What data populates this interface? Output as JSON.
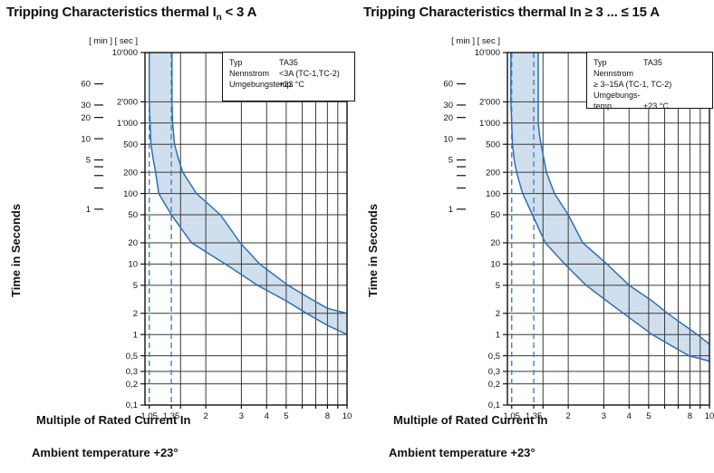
{
  "colors": {
    "band": "#d0dfee",
    "curve": "#2e6fb3",
    "dashed": "#4181c4",
    "grid": "#3a3a3a",
    "axis": "#111111",
    "text": "#111111"
  },
  "chart_data": [
    {
      "type": "area",
      "title": "Tripping Characteristics thermal In < 3 A",
      "title_parts": {
        "prefix": "Tripping Characteristics thermal I",
        "sub": "n",
        "suffix": " < 3 A"
      },
      "ylabel": "Time in Seconds",
      "xlabel": "Multiple of Rated Current In",
      "ambient_note": "Ambient temperature +23°",
      "unit_header": "[ min ] [ sec ]",
      "x_scale": "log",
      "y_scale": "log",
      "xlim": [
        1,
        10
      ],
      "ylim_seconds": [
        0.1,
        10000
      ],
      "sec_ticks": [
        [
          10000,
          "10'000"
        ],
        [
          2000,
          "2'000"
        ],
        [
          1000,
          "1'000"
        ],
        [
          500,
          "500"
        ],
        [
          200,
          "200"
        ],
        [
          100,
          "100"
        ],
        [
          50,
          "50"
        ],
        [
          20,
          "20"
        ],
        [
          10,
          "10"
        ],
        [
          5,
          "5"
        ],
        [
          2,
          "2"
        ],
        [
          1,
          "1"
        ],
        [
          0.5,
          "0,5"
        ],
        [
          0.3,
          "0,3"
        ],
        [
          0.2,
          "0,2"
        ],
        [
          0.1,
          "0,1"
        ]
      ],
      "min_ticks": [
        [
          60,
          "60"
        ],
        [
          30,
          "30"
        ],
        [
          20,
          "20"
        ],
        [
          10,
          "10"
        ],
        [
          5,
          "5"
        ],
        [
          4,
          ""
        ],
        [
          3,
          ""
        ],
        [
          2,
          ""
        ],
        [
          1,
          "1"
        ]
      ],
      "x_ticks": [
        [
          1.05,
          "1,05"
        ],
        [
          1.35,
          "1,35"
        ],
        [
          1.5,
          ""
        ],
        [
          2,
          "2"
        ],
        [
          3,
          "3"
        ],
        [
          4,
          "4"
        ],
        [
          5,
          "5"
        ],
        [
          6,
          ""
        ],
        [
          7,
          ""
        ],
        [
          8,
          "8"
        ],
        [
          9,
          ""
        ],
        [
          10,
          "10"
        ]
      ],
      "x_gridlines": [
        1.5,
        2,
        3,
        4,
        5,
        6,
        7,
        8,
        9,
        10
      ],
      "dashed_gridlines_x": [
        1.05,
        1.35
      ],
      "series": [
        {
          "name": "min-tripping-time",
          "points": [
            [
              1.05,
              10000
            ],
            [
              1.05,
              2000
            ],
            [
              1.06,
              1000
            ],
            [
              1.07,
              500
            ],
            [
              1.1,
              300
            ],
            [
              1.13,
              200
            ],
            [
              1.17,
              100
            ],
            [
              1.35,
              50
            ],
            [
              1.7,
              20
            ],
            [
              2.5,
              10
            ],
            [
              3.6,
              5
            ],
            [
              5.0,
              3
            ],
            [
              6.3,
              2
            ],
            [
              8.0,
              1.35
            ],
            [
              10,
              1.0
            ]
          ]
        },
        {
          "name": "max-tripping-time",
          "points": [
            [
              1.36,
              10000
            ],
            [
              1.36,
              2000
            ],
            [
              1.37,
              1000
            ],
            [
              1.4,
              500
            ],
            [
              1.47,
              300
            ],
            [
              1.54,
              200
            ],
            [
              1.8,
              100
            ],
            [
              2.36,
              50
            ],
            [
              2.96,
              20
            ],
            [
              3.7,
              10
            ],
            [
              5.1,
              5
            ],
            [
              6.5,
              3.3
            ],
            [
              8.0,
              2.35
            ],
            [
              10,
              2.0
            ]
          ]
        }
      ],
      "legend": {
        "rows": [
          [
            "Typ",
            "TA35"
          ],
          [
            "Nennstrom",
            "<3A (TC-1,TC-2)"
          ],
          [
            "Umgebungstemp.",
            "+23 °C"
          ]
        ]
      }
    },
    {
      "type": "area",
      "title": "Tripping Characteristics thermal In ≥ 3 ... ≤ 15 A",
      "title_parts": {
        "prefix": "Tripping Characteristics thermal In ≥ 3 ... ≤ 15 A",
        "sub": "",
        "suffix": ""
      },
      "ylabel": "Time in Seconds",
      "xlabel": "Multiple of Rated Current In",
      "ambient_note": "Ambient temperature +23°",
      "unit_header": "[ min ] [ sec ]",
      "x_scale": "log",
      "y_scale": "log",
      "xlim": [
        1,
        10
      ],
      "ylim_seconds": [
        0.1,
        10000
      ],
      "sec_ticks": [
        [
          10000,
          "10'000"
        ],
        [
          2000,
          "2'000"
        ],
        [
          1000,
          "1'000"
        ],
        [
          500,
          "500"
        ],
        [
          200,
          "200"
        ],
        [
          100,
          "100"
        ],
        [
          50,
          "50"
        ],
        [
          20,
          "20"
        ],
        [
          10,
          "10"
        ],
        [
          5,
          "5"
        ],
        [
          2,
          "2"
        ],
        [
          1,
          "1"
        ],
        [
          0.5,
          "0,5"
        ],
        [
          0.3,
          "0,3"
        ],
        [
          0.2,
          "0,2"
        ],
        [
          0.1,
          "0,1"
        ]
      ],
      "min_ticks": [
        [
          60,
          "60"
        ],
        [
          30,
          "30"
        ],
        [
          20,
          "20"
        ],
        [
          10,
          "10"
        ],
        [
          5,
          "5"
        ],
        [
          4,
          ""
        ],
        [
          3,
          ""
        ],
        [
          2,
          ""
        ],
        [
          1,
          "1"
        ]
      ],
      "x_ticks": [
        [
          1.05,
          "1,05"
        ],
        [
          1.35,
          "1,35"
        ],
        [
          1.5,
          ""
        ],
        [
          2,
          "2"
        ],
        [
          3,
          "3"
        ],
        [
          4,
          "4"
        ],
        [
          5,
          "5"
        ],
        [
          6,
          ""
        ],
        [
          7,
          ""
        ],
        [
          8,
          "8"
        ],
        [
          9,
          ""
        ],
        [
          10,
          "10"
        ]
      ],
      "x_gridlines": [
        1.5,
        2,
        3,
        4,
        5,
        6,
        7,
        8,
        9,
        10
      ],
      "dashed_gridlines_x": [
        1.05,
        1.35
      ],
      "series": [
        {
          "name": "min-tripping-time",
          "points": [
            [
              1.04,
              10000
            ],
            [
              1.04,
              2000
            ],
            [
              1.05,
              1000
            ],
            [
              1.06,
              500
            ],
            [
              1.08,
              300
            ],
            [
              1.11,
              200
            ],
            [
              1.19,
              100
            ],
            [
              1.33,
              50
            ],
            [
              1.54,
              20
            ],
            [
              1.92,
              10
            ],
            [
              2.45,
              5
            ],
            [
              3.1,
              3
            ],
            [
              3.75,
              2
            ],
            [
              5.2,
              1
            ],
            [
              7.9,
              0.5
            ],
            [
              10,
              0.42
            ]
          ]
        },
        {
          "name": "max-tripping-time",
          "points": [
            [
              1.42,
              10000
            ],
            [
              1.42,
              2000
            ],
            [
              1.42,
              1000
            ],
            [
              1.45,
              600
            ],
            [
              1.49,
              400
            ],
            [
              1.56,
              200
            ],
            [
              1.71,
              100
            ],
            [
              2.0,
              50
            ],
            [
              2.36,
              20
            ],
            [
              3.11,
              10
            ],
            [
              4.0,
              5
            ],
            [
              5.2,
              3
            ],
            [
              6.2,
              2
            ],
            [
              8.7,
              1
            ],
            [
              10,
              0.73
            ]
          ]
        }
      ],
      "legend": {
        "rows": [
          [
            "Typ",
            "TA35"
          ],
          [
            "Nennstrom",
            "≥ 3–15A (TC-1, TC-2)"
          ],
          [
            "Umgebungs-",
            ""
          ],
          [
            "temp.",
            "+23 °C"
          ]
        ]
      }
    }
  ]
}
